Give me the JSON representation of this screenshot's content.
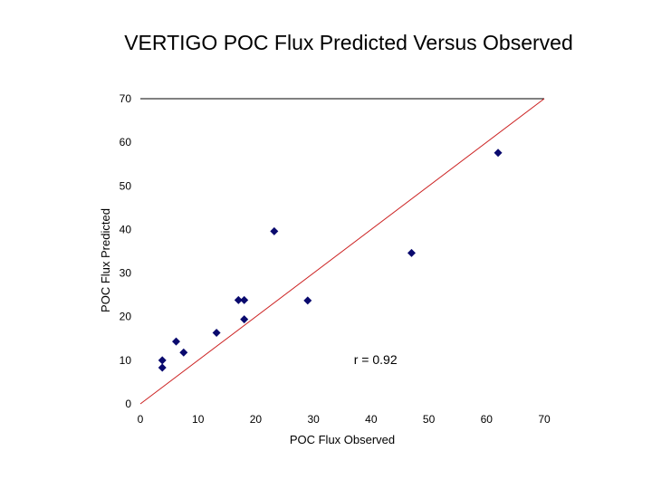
{
  "chart_data": {
    "type": "scatter",
    "title": "VERTIGO POC Flux Predicted Versus Observed",
    "xlabel": "POC Flux Observed",
    "ylabel": "POC Flux Predicted",
    "xlim": [
      0,
      70
    ],
    "ylim": [
      0,
      70
    ],
    "xticks": [
      0,
      10,
      20,
      30,
      40,
      50,
      60,
      70
    ],
    "yticks": [
      0,
      10,
      20,
      30,
      40,
      50,
      60,
      70
    ],
    "grid": false,
    "legend": "none",
    "points": [
      {
        "x": 3.8,
        "y": 8.3
      },
      {
        "x": 3.8,
        "y": 10.0
      },
      {
        "x": 6.2,
        "y": 14.3
      },
      {
        "x": 7.5,
        "y": 11.8
      },
      {
        "x": 13.2,
        "y": 16.3
      },
      {
        "x": 17.0,
        "y": 23.8
      },
      {
        "x": 18.0,
        "y": 23.8
      },
      {
        "x": 18.0,
        "y": 19.4
      },
      {
        "x": 23.2,
        "y": 39.6
      },
      {
        "x": 29.0,
        "y": 23.7
      },
      {
        "x": 47.0,
        "y": 34.6
      },
      {
        "x": 62.0,
        "y": 57.6
      }
    ],
    "reference_line": {
      "from": [
        0,
        0
      ],
      "to": [
        70,
        70
      ],
      "color": "#cc2222"
    },
    "point_color": "#0a0a6e",
    "annotation": "r = 0.92",
    "annotation_pos": {
      "x": 37,
      "y": 10.2
    }
  }
}
